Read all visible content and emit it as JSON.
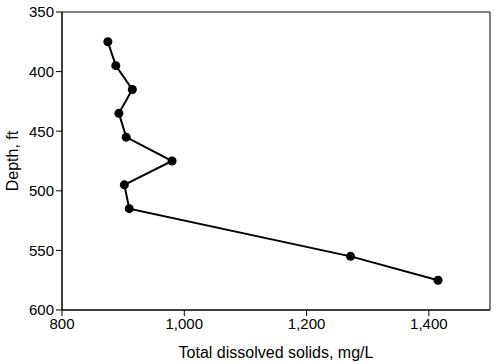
{
  "chart_data": {
    "type": "line",
    "x_label": "Total dissolved solids, mg/L",
    "y_label": "Depth, ft",
    "x": [
      875,
      888,
      915,
      893,
      905,
      980,
      902,
      910,
      1272,
      1415
    ],
    "values": [
      375,
      395,
      415,
      435,
      455,
      475,
      495,
      515,
      555,
      575
    ],
    "xlim": [
      800,
      1500
    ],
    "xticks": [
      800,
      {
        "value": 1000,
        "label": "1,000"
      },
      {
        "value": 1200,
        "label": "1,200"
      },
      {
        "value": 1400,
        "label": "1,400"
      }
    ],
    "ylim": [
      600,
      350
    ],
    "yticks": [
      350,
      400,
      450,
      500,
      550,
      600
    ],
    "color": "#000000",
    "marker": "circle",
    "line_style": "solid",
    "grid": false
  }
}
